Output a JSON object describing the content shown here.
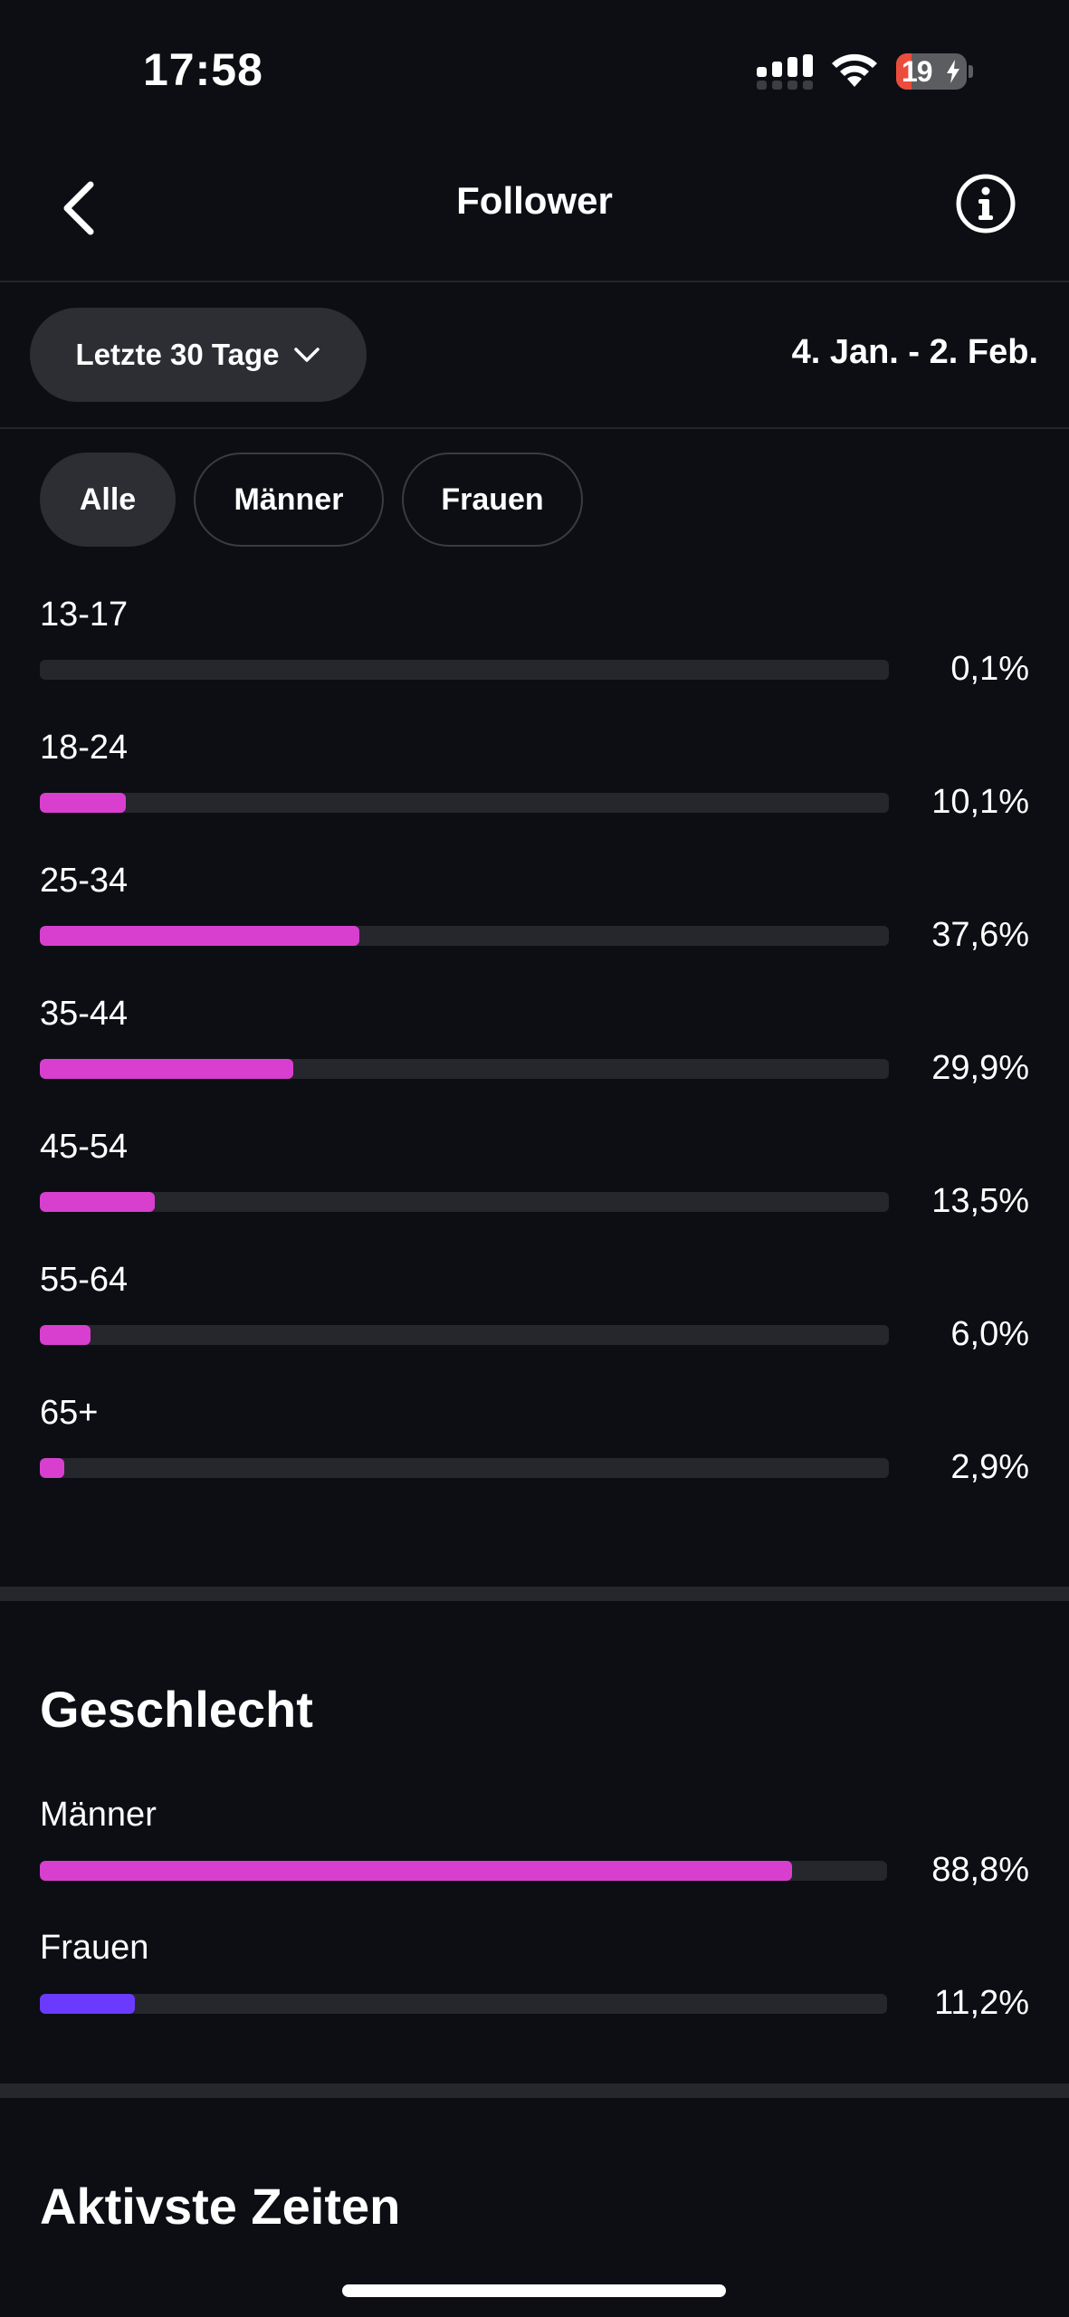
{
  "status_bar": {
    "time": "17:58",
    "battery_percent": "19",
    "battery_level": 0.19,
    "battery_state": "charging"
  },
  "nav": {
    "title": "Follower",
    "back_icon": "chevron-left-icon",
    "info_icon": "info-circle-icon"
  },
  "filter": {
    "range_label": "Letzte 30 Tage",
    "range_icon": "chevron-down-icon",
    "date_range": "4. Jan. - 2. Feb."
  },
  "segments": {
    "selected": "Alle",
    "items": [
      {
        "label": "Alle"
      },
      {
        "label": "Männer"
      },
      {
        "label": "Frauen"
      }
    ]
  },
  "colors": {
    "accent_magenta": "#d93fcf",
    "accent_violet": "#6a3bff",
    "background": "#0c0e13",
    "track": "#25272d"
  },
  "age": {
    "rows": [
      {
        "label": "13-17",
        "value": "0,1%",
        "fraction": 0.001
      },
      {
        "label": "18-24",
        "value": "10,1%",
        "fraction": 0.101
      },
      {
        "label": "25-34",
        "value": "37,6%",
        "fraction": 0.376
      },
      {
        "label": "35-44",
        "value": "29,9%",
        "fraction": 0.299
      },
      {
        "label": "45-54",
        "value": "13,5%",
        "fraction": 0.135
      },
      {
        "label": "55-64",
        "value": "6,0%",
        "fraction": 0.06
      },
      {
        "label": "65+",
        "value": "2,9%",
        "fraction": 0.029
      }
    ]
  },
  "gender": {
    "title": "Geschlecht",
    "rows": [
      {
        "label": "Männer",
        "value": "88,8%",
        "fraction": 0.888
      },
      {
        "label": "Frauen",
        "value": "11,2%",
        "fraction": 0.112
      }
    ]
  },
  "active_times": {
    "title": "Aktivste Zeiten"
  }
}
